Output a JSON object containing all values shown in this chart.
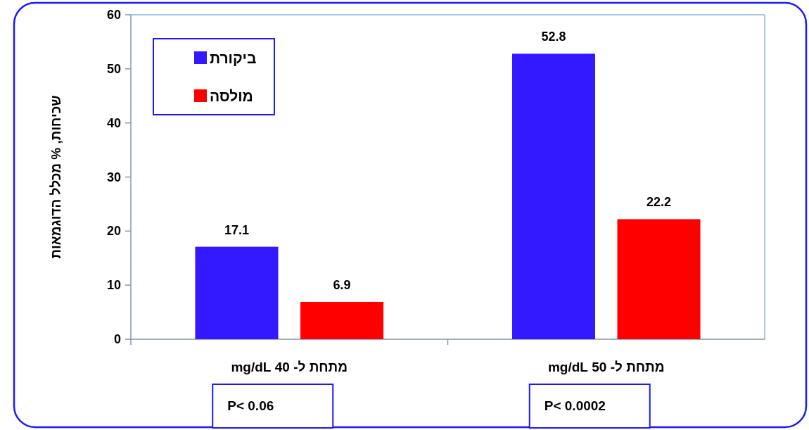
{
  "chart_data": {
    "type": "bar",
    "categories": [
      "מתחת ל- 40 mg/dL",
      "מתחת ל- 50 mg/dL"
    ],
    "series": [
      {
        "name": "ביקורת",
        "color": "#3319ff",
        "values": [
          17.1,
          52.8
        ]
      },
      {
        "name": "מולסה",
        "color": "#ff0000",
        "values": [
          6.9,
          22.2
        ]
      }
    ],
    "ylabel": "שכיחות, % מכלל הדוגמאות",
    "ylim": [
      0,
      60
    ],
    "yticks": [
      0,
      10,
      20,
      30,
      40,
      50,
      60
    ],
    "data_labels": true,
    "legend": "top left",
    "annotations": [
      "P< 0.06",
      "P< 0.0002"
    ]
  }
}
